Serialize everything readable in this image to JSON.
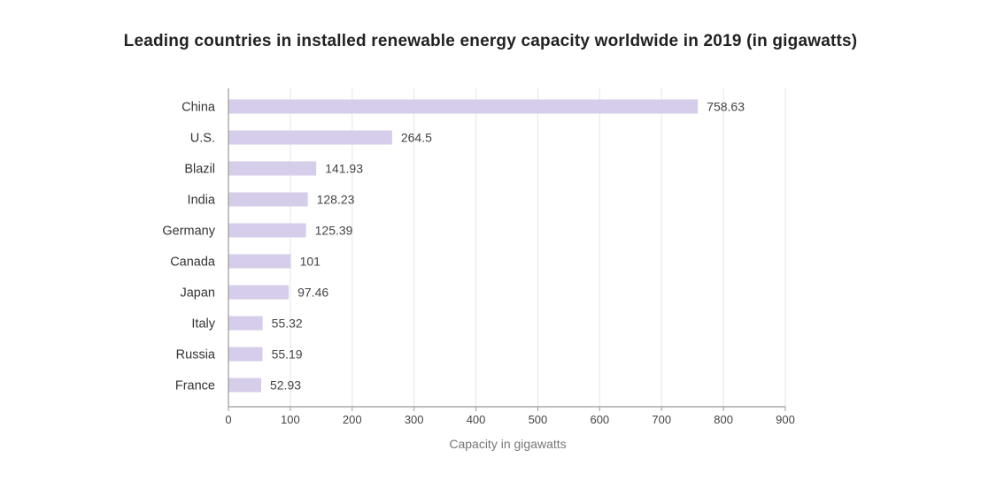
{
  "chart_data": {
    "type": "bar",
    "orientation": "horizontal",
    "title": "Leading countries in installed renewable energy capacity worldwide in 2019 (in gigawatts)",
    "xlabel": "Capacity in gigawatts",
    "ylabel": "",
    "categories": [
      "China",
      "U.S.",
      "Blazil",
      "India",
      "Germany",
      "Canada",
      "Japan",
      "Italy",
      "Russia",
      "France"
    ],
    "values": [
      758.63,
      264.5,
      141.93,
      128.23,
      125.39,
      101,
      97.46,
      55.32,
      55.19,
      52.93
    ],
    "value_labels": [
      "758.63",
      "264.5",
      "141.93",
      "128.23",
      "125.39",
      "101",
      "97.46",
      "55.32",
      "55.19",
      "52.93"
    ],
    "xlim": [
      0,
      900
    ],
    "xticks": [
      0,
      100,
      200,
      300,
      400,
      500,
      600,
      700,
      800,
      900
    ],
    "grid": true,
    "bar_color": "#d6cdea",
    "grid_color": "#e6e6e6",
    "axis_color": "#999999"
  }
}
